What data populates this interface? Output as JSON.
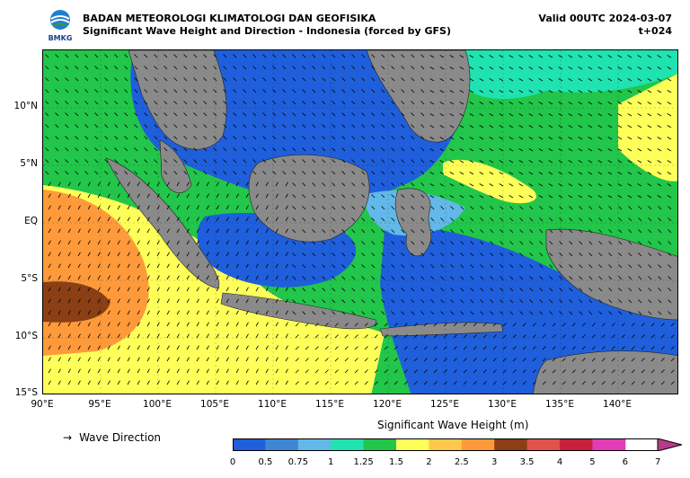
{
  "header": {
    "agency": "BADAN METEOROLOGI KLIMATOLOGI DAN GEOFISIKA",
    "subtitle": "Significant Wave Height and Direction - Indonesia (forced by GFS)",
    "valid": "Valid 00UTC 2024-03-07",
    "lead": "t+024",
    "logo_text": "BMKG"
  },
  "axes": {
    "lat_labels": [
      "10°N",
      "5°N",
      "EQ",
      "5°S",
      "10°S",
      "15°S"
    ],
    "lon_labels": [
      "90°E",
      "95°E",
      "100°E",
      "105°E",
      "110°E",
      "115°E",
      "120°E",
      "125°E",
      "130°E",
      "135°E",
      "140°E"
    ]
  },
  "legend": {
    "arrow_glyph": "→",
    "arrow_label": "Wave Direction",
    "colorbar_title": "Significant Wave Height (m)",
    "ticks": [
      "0",
      "0.5",
      "0.75",
      "1",
      "1.25",
      "1.5",
      "2",
      "2.5",
      "3",
      "3.5",
      "4",
      "5",
      "6",
      "7"
    ],
    "colors": [
      "#1f5fdc",
      "#3f86d4",
      "#62b8e8",
      "#1fe3b0",
      "#22c64a",
      "#ffff5a",
      "#ffc84a",
      "#ff9a3a",
      "#8b3f14",
      "#e0524a",
      "#c8203c",
      "#e23cb8",
      "#b43c8a"
    ]
  },
  "palette": {
    "land": "#8a8a8a",
    "frame": "#000000"
  }
}
